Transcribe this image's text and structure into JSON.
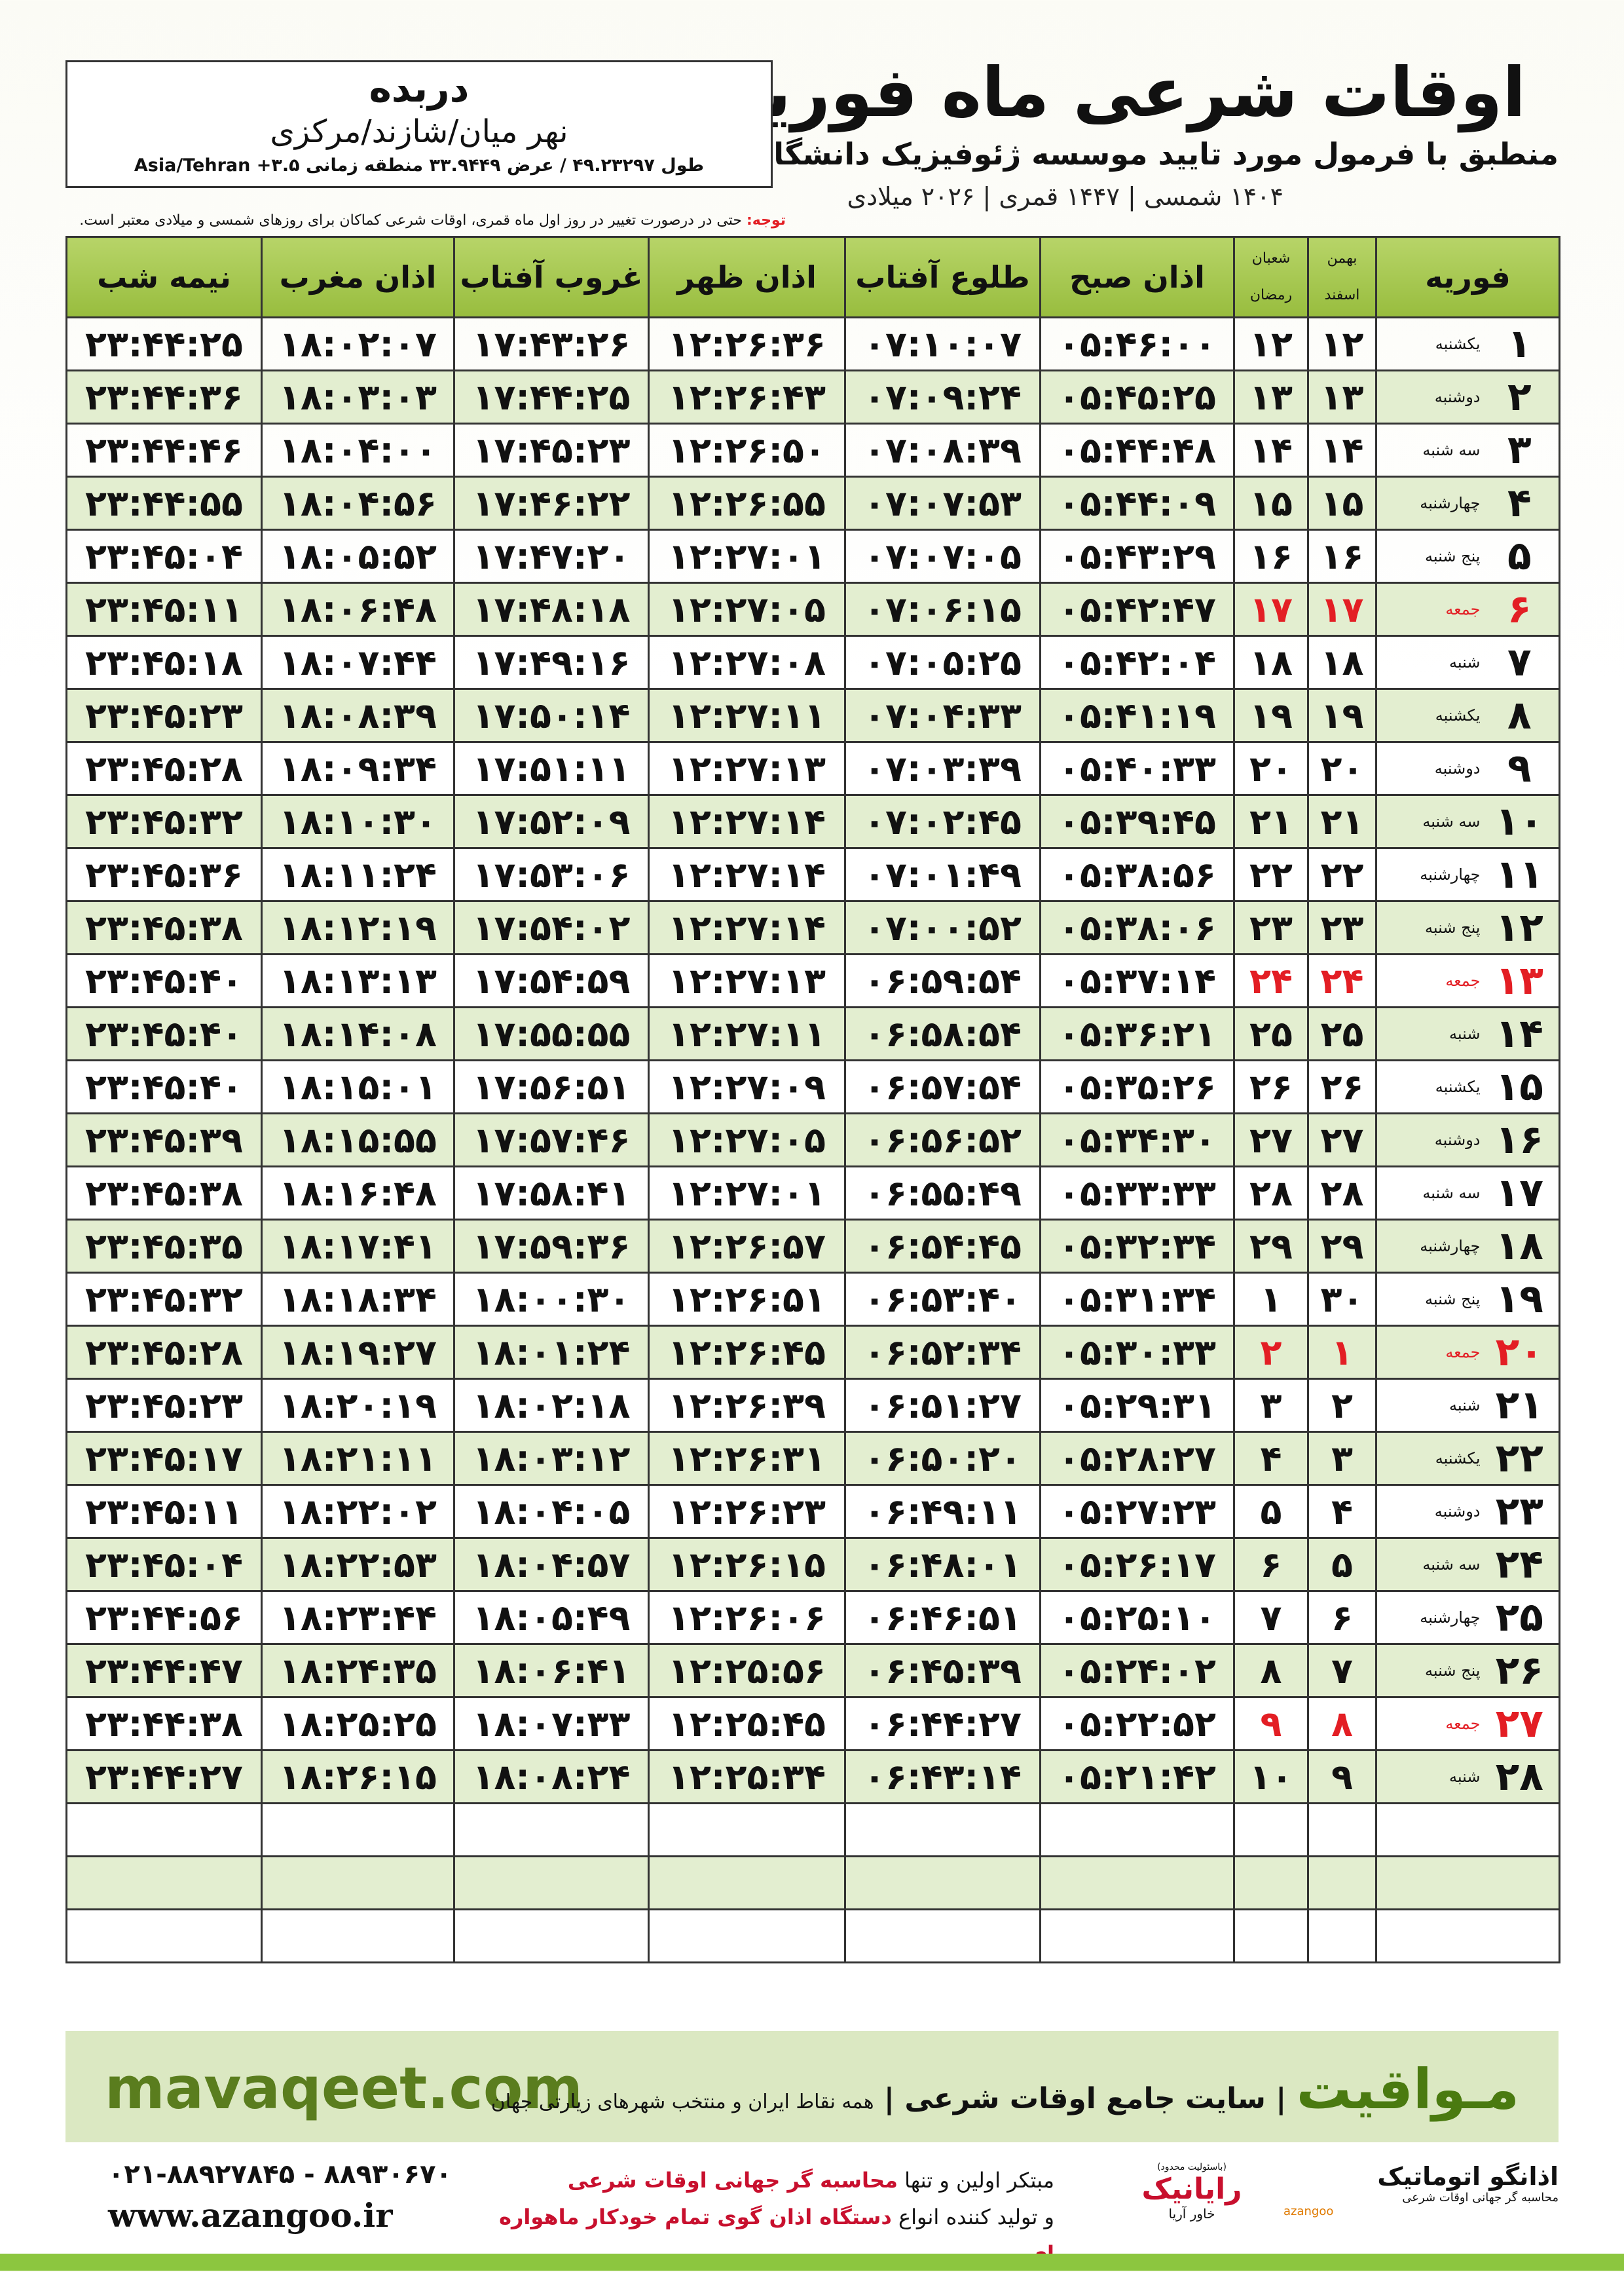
{
  "header": {
    "title": "اوقات شرعی ماه فوریه",
    "subtitle": "منطبق با فرمول مورد تایید موسسه ژئوفیزیک دانشگاه تهران",
    "dates": "۱۴۰۴ شمسی | ۱۴۴۷ قمری | ۲۰۲۶ میلادی"
  },
  "location": {
    "city": "دربده",
    "district": "نهر میان/شازند/مرکزی",
    "coordinates": "طول ۴۹.۲۳۲۹۷ / عرض ۳۳.۹۴۴۹ منطقه زمانی ۳.۵+ Asia/Tehran"
  },
  "note": {
    "label": "توجه:",
    "text": "حتی در درصورت تغییر در روز اول ماه قمری، اوقات شرعی کماکان برای روزهای شمسی و میلادی معتبر است."
  },
  "table": {
    "columns": {
      "month": "فوریه",
      "shamsi": [
        "بهمن",
        "اسفند"
      ],
      "qamari": [
        "شعبان",
        "رمضان"
      ],
      "times": [
        "اذان صبح",
        "طلوع آفتاب",
        "اذان ظهر",
        "غروب آفتاب",
        "اذان مغرب",
        "نیمه شب"
      ]
    },
    "highlight_color": "#e31e24",
    "highlight_rows": [
      5,
      12,
      19,
      26
    ],
    "rows": [
      [
        "۱",
        "یکشنبه",
        "۱۲",
        "۱۲",
        "۰۵:۴۶:۰۰",
        "۰۷:۱۰:۰۷",
        "۱۲:۲۶:۳۶",
        "۱۷:۴۳:۲۶",
        "۱۸:۰۲:۰۷",
        "۲۳:۴۴:۲۵"
      ],
      [
        "۲",
        "دوشنبه",
        "۱۳",
        "۱۳",
        "۰۵:۴۵:۲۵",
        "۰۷:۰۹:۲۴",
        "۱۲:۲۶:۴۳",
        "۱۷:۴۴:۲۵",
        "۱۸:۰۳:۰۳",
        "۲۳:۴۴:۳۶"
      ],
      [
        "۳",
        "سه شنبه",
        "۱۴",
        "۱۴",
        "۰۵:۴۴:۴۸",
        "۰۷:۰۸:۳۹",
        "۱۲:۲۶:۵۰",
        "۱۷:۴۵:۲۳",
        "۱۸:۰۴:۰۰",
        "۲۳:۴۴:۴۶"
      ],
      [
        "۴",
        "چهارشنبه",
        "۱۵",
        "۱۵",
        "۰۵:۴۴:۰۹",
        "۰۷:۰۷:۵۳",
        "۱۲:۲۶:۵۵",
        "۱۷:۴۶:۲۲",
        "۱۸:۰۴:۵۶",
        "۲۳:۴۴:۵۵"
      ],
      [
        "۵",
        "پنج شنبه",
        "۱۶",
        "۱۶",
        "۰۵:۴۳:۲۹",
        "۰۷:۰۷:۰۵",
        "۱۲:۲۷:۰۱",
        "۱۷:۴۷:۲۰",
        "۱۸:۰۵:۵۲",
        "۲۳:۴۵:۰۴"
      ],
      [
        "۶",
        "جمعه",
        "۱۷",
        "۱۷",
        "۰۵:۴۲:۴۷",
        "۰۷:۰۶:۱۵",
        "۱۲:۲۷:۰۵",
        "۱۷:۴۸:۱۸",
        "۱۸:۰۶:۴۸",
        "۲۳:۴۵:۱۱"
      ],
      [
        "۷",
        "شنبه",
        "۱۸",
        "۱۸",
        "۰۵:۴۲:۰۴",
        "۰۷:۰۵:۲۵",
        "۱۲:۲۷:۰۸",
        "۱۷:۴۹:۱۶",
        "۱۸:۰۷:۴۴",
        "۲۳:۴۵:۱۸"
      ],
      [
        "۸",
        "یکشنبه",
        "۱۹",
        "۱۹",
        "۰۵:۴۱:۱۹",
        "۰۷:۰۴:۳۳",
        "۱۲:۲۷:۱۱",
        "۱۷:۵۰:۱۴",
        "۱۸:۰۸:۳۹",
        "۲۳:۴۵:۲۳"
      ],
      [
        "۹",
        "دوشنبه",
        "۲۰",
        "۲۰",
        "۰۵:۴۰:۳۳",
        "۰۷:۰۳:۳۹",
        "۱۲:۲۷:۱۳",
        "۱۷:۵۱:۱۱",
        "۱۸:۰۹:۳۴",
        "۲۳:۴۵:۲۸"
      ],
      [
        "۱۰",
        "سه شنبه",
        "۲۱",
        "۲۱",
        "۰۵:۳۹:۴۵",
        "۰۷:۰۲:۴۵",
        "۱۲:۲۷:۱۴",
        "۱۷:۵۲:۰۹",
        "۱۸:۱۰:۳۰",
        "۲۳:۴۵:۳۲"
      ],
      [
        "۱۱",
        "چهارشنبه",
        "۲۲",
        "۲۲",
        "۰۵:۳۸:۵۶",
        "۰۷:۰۱:۴۹",
        "۱۲:۲۷:۱۴",
        "۱۷:۵۳:۰۶",
        "۱۸:۱۱:۲۴",
        "۲۳:۴۵:۳۶"
      ],
      [
        "۱۲",
        "پنج شنبه",
        "۲۳",
        "۲۳",
        "۰۵:۳۸:۰۶",
        "۰۷:۰۰:۵۲",
        "۱۲:۲۷:۱۴",
        "۱۷:۵۴:۰۲",
        "۱۸:۱۲:۱۹",
        "۲۳:۴۵:۳۸"
      ],
      [
        "۱۳",
        "جمعه",
        "۲۴",
        "۲۴",
        "۰۵:۳۷:۱۴",
        "۰۶:۵۹:۵۴",
        "۱۲:۲۷:۱۳",
        "۱۷:۵۴:۵۹",
        "۱۸:۱۳:۱۳",
        "۲۳:۴۵:۴۰"
      ],
      [
        "۱۴",
        "شنبه",
        "۲۵",
        "۲۵",
        "۰۵:۳۶:۲۱",
        "۰۶:۵۸:۵۴",
        "۱۲:۲۷:۱۱",
        "۱۷:۵۵:۵۵",
        "۱۸:۱۴:۰۸",
        "۲۳:۴۵:۴۰"
      ],
      [
        "۱۵",
        "یکشنبه",
        "۲۶",
        "۲۶",
        "۰۵:۳۵:۲۶",
        "۰۶:۵۷:۵۴",
        "۱۲:۲۷:۰۹",
        "۱۷:۵۶:۵۱",
        "۱۸:۱۵:۰۱",
        "۲۳:۴۵:۴۰"
      ],
      [
        "۱۶",
        "دوشنبه",
        "۲۷",
        "۲۷",
        "۰۵:۳۴:۳۰",
        "۰۶:۵۶:۵۲",
        "۱۲:۲۷:۰۵",
        "۱۷:۵۷:۴۶",
        "۱۸:۱۵:۵۵",
        "۲۳:۴۵:۳۹"
      ],
      [
        "۱۷",
        "سه شنبه",
        "۲۸",
        "۲۸",
        "۰۵:۳۳:۳۳",
        "۰۶:۵۵:۴۹",
        "۱۲:۲۷:۰۱",
        "۱۷:۵۸:۴۱",
        "۱۸:۱۶:۴۸",
        "۲۳:۴۵:۳۸"
      ],
      [
        "۱۸",
        "چهارشنبه",
        "۲۹",
        "۲۹",
        "۰۵:۳۲:۳۴",
        "۰۶:۵۴:۴۵",
        "۱۲:۲۶:۵۷",
        "۱۷:۵۹:۳۶",
        "۱۸:۱۷:۴۱",
        "۲۳:۴۵:۳۵"
      ],
      [
        "۱۹",
        "پنج شنبه",
        "۳۰",
        "۱",
        "۰۵:۳۱:۳۴",
        "۰۶:۵۳:۴۰",
        "۱۲:۲۶:۵۱",
        "۱۸:۰۰:۳۰",
        "۱۸:۱۸:۳۴",
        "۲۳:۴۵:۳۲"
      ],
      [
        "۲۰",
        "جمعه",
        "۱",
        "۲",
        "۰۵:۳۰:۳۳",
        "۰۶:۵۲:۳۴",
        "۱۲:۲۶:۴۵",
        "۱۸:۰۱:۲۴",
        "۱۸:۱۹:۲۷",
        "۲۳:۴۵:۲۸"
      ],
      [
        "۲۱",
        "شنبه",
        "۲",
        "۳",
        "۰۵:۲۹:۳۱",
        "۰۶:۵۱:۲۷",
        "۱۲:۲۶:۳۹",
        "۱۸:۰۲:۱۸",
        "۱۸:۲۰:۱۹",
        "۲۳:۴۵:۲۳"
      ],
      [
        "۲۲",
        "یکشنبه",
        "۳",
        "۴",
        "۰۵:۲۸:۲۷",
        "۰۶:۵۰:۲۰",
        "۱۲:۲۶:۳۱",
        "۱۸:۰۳:۱۲",
        "۱۸:۲۱:۱۱",
        "۲۳:۴۵:۱۷"
      ],
      [
        "۲۳",
        "دوشنبه",
        "۴",
        "۵",
        "۰۵:۲۷:۲۳",
        "۰۶:۴۹:۱۱",
        "۱۲:۲۶:۲۳",
        "۱۸:۰۴:۰۵",
        "۱۸:۲۲:۰۲",
        "۲۳:۴۵:۱۱"
      ],
      [
        "۲۴",
        "سه شنبه",
        "۵",
        "۶",
        "۰۵:۲۶:۱۷",
        "۰۶:۴۸:۰۱",
        "۱۲:۲۶:۱۵",
        "۱۸:۰۴:۵۷",
        "۱۸:۲۲:۵۳",
        "۲۳:۴۵:۰۴"
      ],
      [
        "۲۵",
        "چهارشنبه",
        "۶",
        "۷",
        "۰۵:۲۵:۱۰",
        "۰۶:۴۶:۵۱",
        "۱۲:۲۶:۰۶",
        "۱۸:۰۵:۴۹",
        "۱۸:۲۳:۴۴",
        "۲۳:۴۴:۵۶"
      ],
      [
        "۲۶",
        "پنج شنبه",
        "۷",
        "۸",
        "۰۵:۲۴:۰۲",
        "۰۶:۴۵:۳۹",
        "۱۲:۲۵:۵۶",
        "۱۸:۰۶:۴۱",
        "۱۸:۲۴:۳۵",
        "۲۳:۴۴:۴۷"
      ],
      [
        "۲۷",
        "جمعه",
        "۸",
        "۹",
        "۰۵:۲۲:۵۲",
        "۰۶:۴۴:۲۷",
        "۱۲:۲۵:۴۵",
        "۱۸:۰۷:۳۳",
        "۱۸:۲۵:۲۵",
        "۲۳:۴۴:۳۸"
      ],
      [
        "۲۸",
        "شنبه",
        "۹",
        "۱۰",
        "۰۵:۲۱:۴۲",
        "۰۶:۴۳:۱۴",
        "۱۲:۲۵:۳۴",
        "۱۸:۰۸:۲۴",
        "۱۸:۲۶:۱۵",
        "۲۳:۴۴:۲۷"
      ]
    ]
  },
  "footer": {
    "brand": "مـواقیت",
    "slogan": "سایت جامع اوقات شرعی",
    "coverage": "همه نقاط ایران و منتخب شهرهای زیارتی جهان",
    "site": "mavaqeet.com",
    "phone": "۰۲۱-۸۸۹۲۷۸۴۵ - ۸۸۹۳۰۶۷۰",
    "web": "www.azangoo.ir",
    "line1_a": "مبتکر اولین و تنها",
    "line1_b": "محاسبه گر جهانی اوقات شرعی",
    "line2_a": "و تولید کننده انواع",
    "line2_b": "دستگاه اذان گوی تمام خودکار ماهواره ای",
    "logo1_note": "(باسئولیت محدود)",
    "logo1_name": "رایانیک",
    "logo1_sub": "خاور آریا",
    "logo2_name": "اذانگو اتوماتیک",
    "logo2_sub": "محاسبه گر جهانی اوقات شرعی",
    "logo2_latin": "azangoo"
  }
}
